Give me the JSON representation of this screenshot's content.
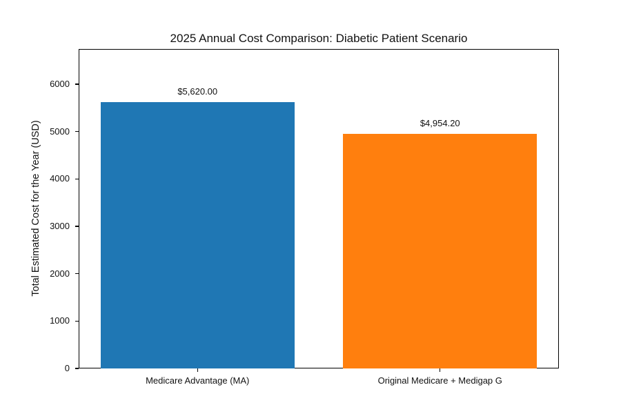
{
  "chart_data": {
    "type": "bar",
    "title": "2025 Annual Cost Comparison: Diabetic Patient Scenario",
    "ylabel": "Total Estimated Cost for the Year (USD)",
    "xlabel": "",
    "categories": [
      "Medicare Advantage (MA)",
      "Original Medicare + Medigap G"
    ],
    "values": [
      5620.0,
      4954.2
    ],
    "bar_labels": [
      "$5,620.00",
      "$4,954.20"
    ],
    "bar_colors": [
      "#1f77b4",
      "#ff7f0e"
    ],
    "yticks": [
      0,
      1000,
      2000,
      3000,
      4000,
      5000,
      6000
    ],
    "ylim": [
      0,
      6744
    ],
    "grid": false,
    "legend_position": "none",
    "background_color": "#ffffff",
    "text_color": "#111111"
  }
}
